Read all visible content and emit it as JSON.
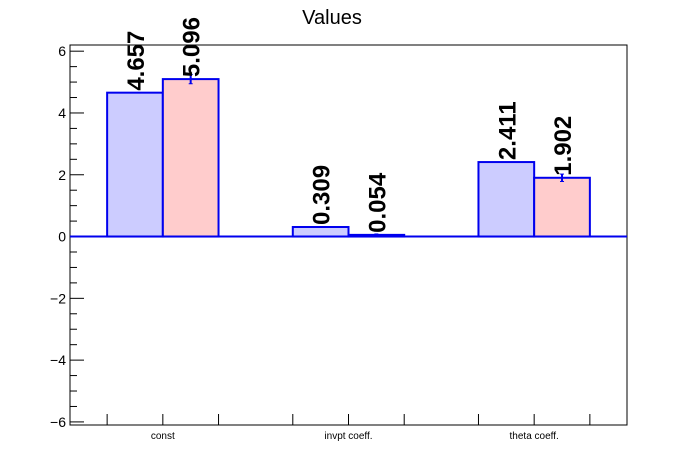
{
  "chart_data": {
    "type": "bar",
    "title": "Values",
    "categories": [
      "const",
      "invpt coeff.",
      "theta coeff."
    ],
    "series": [
      {
        "values": [
          4.657,
          0.309,
          2.411
        ],
        "labels": [
          "4.657",
          "0.309",
          "2.411"
        ],
        "errors": [
          0,
          0,
          0
        ],
        "fill": "#ccccff",
        "stroke": "#0000ee"
      },
      {
        "values": [
          5.096,
          0.054,
          1.902
        ],
        "labels": [
          "5.096",
          "0.054",
          "1.902"
        ],
        "errors": [
          0.15,
          0.03,
          0.12
        ],
        "fill": "#ffcccc",
        "stroke": "#0000ee"
      }
    ],
    "ylim": [
      -6.1,
      6.2
    ],
    "yticks": [
      -6,
      -4,
      -2,
      0,
      2,
      4,
      6
    ],
    "ytick_labels": [
      "−6",
      "−4",
      "−2",
      "0",
      "2",
      "4",
      "6"
    ],
    "xlabel": "",
    "ylabel": "",
    "grid": false,
    "legend": "none"
  }
}
